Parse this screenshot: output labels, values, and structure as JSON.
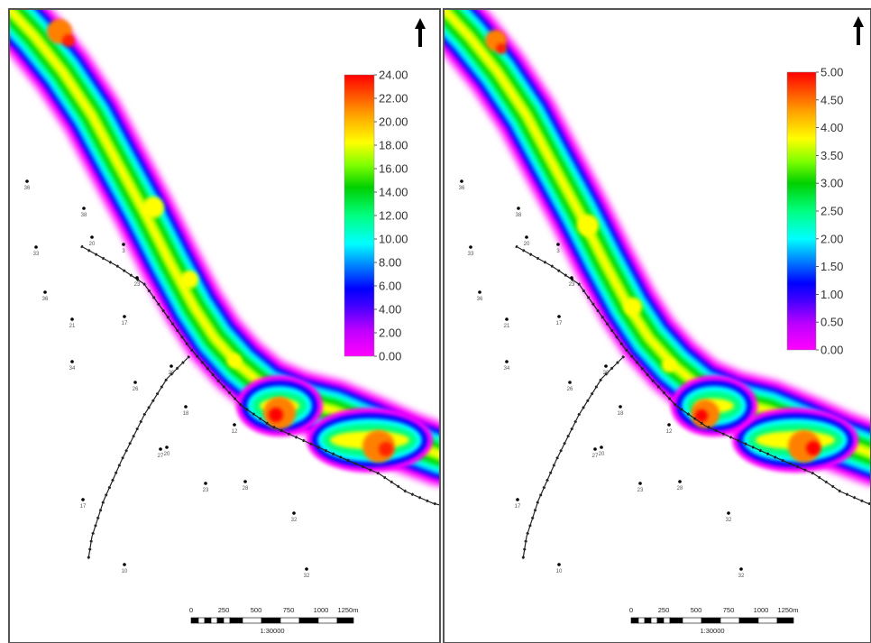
{
  "panels": [
    {
      "legend": {
        "ticks": [
          "24.00",
          "22.00",
          "20.00",
          "18.00",
          "16.00",
          "14.00",
          "12.00",
          "10.00",
          "8.00",
          "6.00",
          "4.00",
          "2.00",
          "0.00"
        ]
      },
      "scale": {
        "ticks": [
          "0",
          "250",
          "500",
          "750",
          "1000",
          "1250m"
        ],
        "ratio": "1:30000"
      }
    },
    {
      "legend": {
        "ticks": [
          "5.00",
          "4.50",
          "4.00",
          "3.50",
          "3.00",
          "2.50",
          "2.00",
          "1.50",
          "1.00",
          "0.50",
          "0.00"
        ]
      },
      "scale": {
        "ticks": [
          "0",
          "250",
          "500",
          "750",
          "1000",
          "1250m"
        ],
        "ratio": "1:30000"
      }
    }
  ],
  "colors": {
    "ramp": [
      "#ff00ff",
      "#8000ff",
      "#0000ff",
      "#00bfff",
      "#00ffff",
      "#00ff80",
      "#00c000",
      "#80ff00",
      "#ffff00",
      "#ffc000",
      "#ff8000",
      "#ff0000"
    ],
    "frame": "#555555",
    "fault": "#222222",
    "well": "#000000"
  },
  "icons": {
    "north_arrow": "north-arrow-icon",
    "well": "well-marker-icon"
  },
  "wells": {
    "left": [
      "36",
      "38",
      "20",
      "3",
      "33",
      "23",
      "36",
      "21",
      "17",
      "34",
      "26",
      "20",
      "18",
      "12",
      "20",
      "27",
      "23",
      "28",
      "17",
      "10",
      "32",
      "32"
    ],
    "right": [
      "36",
      "38",
      "20",
      "3",
      "33",
      "23",
      "36",
      "21",
      "17",
      "34",
      "26",
      "20",
      "18",
      "12",
      "20",
      "27",
      "23",
      "28",
      "17",
      "10",
      "32",
      "32"
    ]
  }
}
